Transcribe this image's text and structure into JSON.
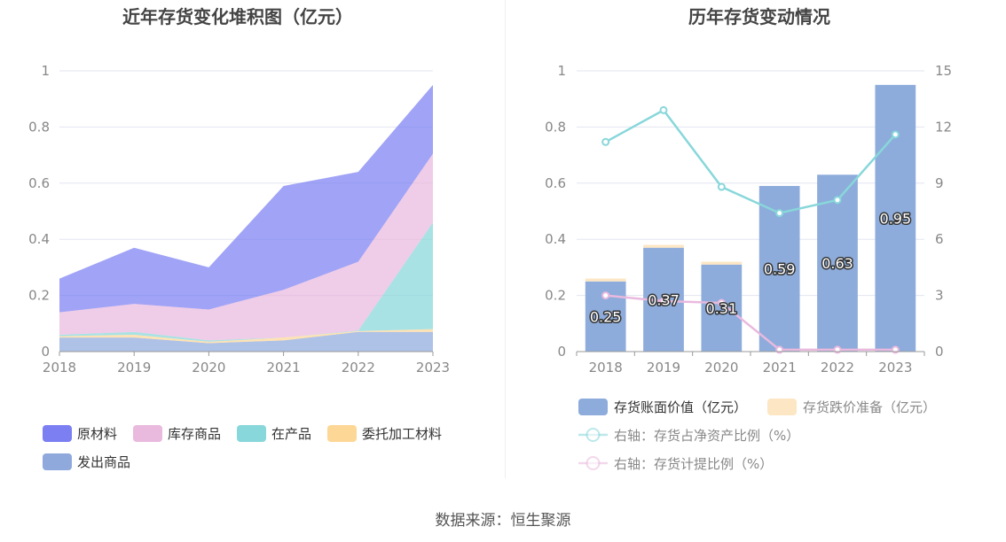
{
  "chart_data": [
    {
      "type": "area",
      "stacked": true,
      "title": "近年存货变化堆积图（亿元）",
      "categories": [
        "2018",
        "2019",
        "2020",
        "2021",
        "2022",
        "2023"
      ],
      "ylim": [
        0,
        1
      ],
      "yticks": [
        "0",
        "0.2",
        "0.4",
        "0.6",
        "0.8",
        "1"
      ],
      "grid": true,
      "legend_position": "bottom",
      "series": [
        {
          "name": "发出商品",
          "color": "#8fa9dd",
          "values": [
            0.05,
            0.05,
            0.03,
            0.04,
            0.07,
            0.07
          ]
        },
        {
          "name": "委托加工材料",
          "color": "#fdd795",
          "values": [
            0.005,
            0.01,
            0.005,
            0.01,
            0.003,
            0.01
          ]
        },
        {
          "name": "在产品",
          "color": "#88d7da",
          "values": [
            0.005,
            0.01,
            0.005,
            0.0,
            0.002,
            0.38
          ]
        },
        {
          "name": "库存商品",
          "color": "#e9b9de",
          "values": [
            0.08,
            0.1,
            0.11,
            0.17,
            0.245,
            0.245
          ]
        },
        {
          "name": "原材料",
          "color": "#7b7ff2",
          "values": [
            0.12,
            0.2,
            0.15,
            0.37,
            0.32,
            0.245
          ]
        }
      ],
      "legend": [
        {
          "name": "原材料",
          "color": "#7b7ff2"
        },
        {
          "name": "库存商品",
          "color": "#e9b9de"
        },
        {
          "name": "在产品",
          "color": "#88d7da"
        },
        {
          "name": "委托加工材料",
          "color": "#fdd795"
        },
        {
          "name": "发出商品",
          "color": "#8fa9dd"
        }
      ]
    },
    {
      "type": "bar",
      "title": "历年存货变动情况",
      "categories": [
        "2018",
        "2019",
        "2020",
        "2021",
        "2022",
        "2023"
      ],
      "ylim": [
        0,
        1
      ],
      "yticks": [
        "0",
        "0.2",
        "0.4",
        "0.6",
        "0.8",
        "1"
      ],
      "y2lim": [
        0,
        15
      ],
      "y2ticks": [
        "0",
        "3",
        "6",
        "9",
        "12",
        "15"
      ],
      "grid": true,
      "legend_position": "bottom",
      "series": [
        {
          "name": "存货账面价值（亿元）",
          "type": "bar",
          "axis": "left",
          "color": "#8dacdb",
          "values": [
            0.25,
            0.37,
            0.31,
            0.59,
            0.63,
            0.95
          ],
          "labels": [
            "0.25",
            "0.37",
            "0.31",
            "0.59",
            "0.63",
            "0.95"
          ]
        },
        {
          "name": "存货跌价准备（亿元）",
          "type": "bar",
          "axis": "left",
          "stacked": true,
          "color": "#fde6c3",
          "values": [
            0.01,
            0.01,
            0.01,
            0.0,
            0.0,
            0.0
          ]
        },
        {
          "name": "右轴：存货占净资产比例（%）",
          "type": "line",
          "axis": "right",
          "color": "#88d7da",
          "values": [
            11.2,
            12.9,
            8.8,
            7.4,
            8.1,
            11.6
          ]
        },
        {
          "name": "右轴：存货计提比例（%）",
          "type": "line",
          "axis": "right",
          "color": "#e9b9de",
          "values": [
            3.0,
            2.7,
            2.6,
            0.1,
            0.1,
            0.1
          ]
        }
      ]
    }
  ],
  "source": "数据来源：恒生聚源"
}
